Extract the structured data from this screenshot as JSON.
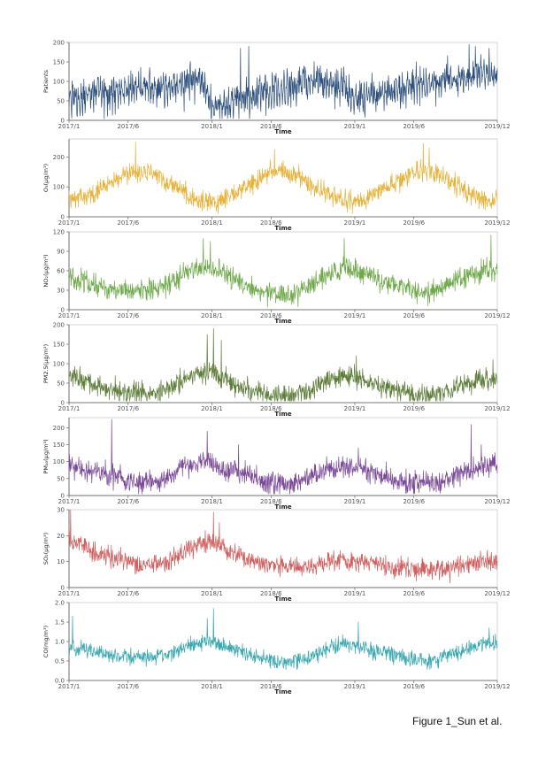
{
  "caption": "Figure 1_Sun et al.",
  "chart_data": [
    {
      "type": "line",
      "xlabel": "Time",
      "ylabel": "Patients",
      "color": "#2d4f7c",
      "x_range": [
        "2017-01-01",
        "2019-12-31"
      ],
      "ylim": [
        0,
        200
      ],
      "yticks": [
        0,
        50,
        100,
        150,
        200
      ],
      "xticks": [
        "2017/1",
        "2017/6",
        "2018/1",
        "2018/6",
        "2019/1",
        "2019/6",
        "2019/12"
      ],
      "monthly_mean": [
        60,
        70,
        75,
        80,
        85,
        88,
        90,
        92,
        95,
        100,
        105,
        120,
        40,
        50,
        60,
        70,
        75,
        80,
        85,
        95,
        105,
        110,
        100,
        95,
        70,
        75,
        80,
        85,
        90,
        95,
        100,
        110,
        115,
        120,
        125,
        130
      ],
      "noise": 35,
      "peaks": [
        [
          "2018-03-15",
          185
        ],
        [
          "2018-04-05",
          190
        ],
        [
          "2019-10-20",
          195
        ],
        [
          "2019-11-05",
          190
        ],
        [
          "2019-12-10",
          185
        ]
      ]
    },
    {
      "type": "line",
      "xlabel": "Time",
      "ylabel": "O₃(μg/m³)",
      "color": "#e6b23a",
      "x_range": [
        "2017-01-01",
        "2019-12-31"
      ],
      "ylim": [
        0,
        260
      ],
      "yticks": [
        0,
        100,
        200
      ],
      "xticks": [
        "2017/1",
        "2017/6",
        "2018/1",
        "2018/6",
        "2019/1",
        "2019/6",
        "2019/12"
      ],
      "monthly_mean": [
        60,
        65,
        80,
        100,
        120,
        140,
        150,
        140,
        120,
        100,
        70,
        55,
        50,
        55,
        75,
        100,
        130,
        150,
        150,
        140,
        120,
        95,
        70,
        55,
        50,
        55,
        80,
        105,
        130,
        150,
        150,
        140,
        120,
        100,
        70,
        55
      ],
      "noise": 30,
      "peaks": [
        [
          "2017-06-20",
          250
        ],
        [
          "2018-06-10",
          225
        ],
        [
          "2019-06-25",
          245
        ],
        [
          "2019-07-10",
          230
        ]
      ]
    },
    {
      "type": "line",
      "xlabel": "Time",
      "ylabel": "NO₂(μg/m³)",
      "color": "#6ea84a",
      "x_range": [
        "2017-01-01",
        "2019-12-31"
      ],
      "ylim": [
        0,
        120
      ],
      "yticks": [
        0,
        30,
        60,
        90,
        120
      ],
      "xticks": [
        "2017/1",
        "2017/6",
        "2018/1",
        "2018/6",
        "2019/1",
        "2019/6",
        "2019/12"
      ],
      "monthly_mean": [
        50,
        45,
        40,
        35,
        30,
        28,
        28,
        30,
        35,
        45,
        60,
        65,
        65,
        55,
        45,
        38,
        30,
        25,
        22,
        25,
        35,
        45,
        55,
        65,
        60,
        55,
        45,
        40,
        35,
        30,
        28,
        30,
        40,
        50,
        55,
        60
      ],
      "noise": 15,
      "peaks": [
        [
          "2017-12-10",
          110
        ],
        [
          "2017-12-28",
          105
        ],
        [
          "2018-12-05",
          110
        ],
        [
          "2019-12-15",
          115
        ]
      ]
    },
    {
      "type": "line",
      "xlabel": "Time",
      "ylabel": "PM2.5(μg/m³)",
      "color": "#5e7d3a",
      "x_range": [
        "2017-01-01",
        "2019-12-31"
      ],
      "ylim": [
        0,
        200
      ],
      "yticks": [
        0,
        50,
        100,
        150,
        200
      ],
      "xticks": [
        "2017/1",
        "2017/6",
        "2018/1",
        "2018/6",
        "2019/1",
        "2019/6",
        "2019/12"
      ],
      "monthly_mean": [
        70,
        60,
        50,
        40,
        30,
        25,
        25,
        25,
        30,
        45,
        70,
        80,
        80,
        60,
        45,
        35,
        28,
        22,
        20,
        22,
        30,
        45,
        60,
        70,
        65,
        55,
        40,
        35,
        28,
        22,
        20,
        22,
        30,
        45,
        55,
        65
      ],
      "noise": 25,
      "peaks": [
        [
          "2017-12-20",
          175
        ],
        [
          "2018-01-05",
          190
        ],
        [
          "2018-01-25",
          160
        ],
        [
          "2019-01-05",
          120
        ],
        [
          "2019-12-20",
          110
        ]
      ]
    },
    {
      "type": "line",
      "xlabel": "Time",
      "ylabel": "PM₁₀(μg/m³)",
      "color": "#7a4a99",
      "x_range": [
        "2017-01-01",
        "2019-12-31"
      ],
      "ylim": [
        0,
        230
      ],
      "yticks": [
        0,
        50,
        100,
        150,
        200
      ],
      "xticks": [
        "2017/1",
        "2017/6",
        "2018/1",
        "2018/6",
        "2019/1",
        "2019/6",
        "2019/12"
      ],
      "monthly_mean": [
        90,
        80,
        75,
        65,
        55,
        45,
        40,
        40,
        50,
        65,
        85,
        100,
        95,
        80,
        70,
        60,
        50,
        40,
        35,
        40,
        50,
        65,
        80,
        90,
        85,
        70,
        60,
        55,
        45,
        40,
        35,
        40,
        50,
        65,
        80,
        90
      ],
      "noise": 30,
      "peaks": [
        [
          "2017-04-20",
          225
        ],
        [
          "2017-12-20",
          190
        ],
        [
          "2018-03-10",
          150
        ],
        [
          "2019-01-10",
          140
        ],
        [
          "2019-10-25",
          210
        ],
        [
          "2019-11-20",
          150
        ]
      ]
    },
    {
      "type": "line",
      "xlabel": "Time",
      "ylabel": "SO₂(μg/m³)",
      "color": "#d06060",
      "x_range": [
        "2017-01-01",
        "2019-12-31"
      ],
      "ylim": [
        0,
        30
      ],
      "yticks": [
        0,
        10,
        20,
        30
      ],
      "xticks": [
        "2017/1",
        "2017/6",
        "2018/1",
        "2018/6",
        "2019/1",
        "2019/6",
        "2019/12"
      ],
      "monthly_mean": [
        18,
        16,
        14,
        12,
        11,
        10,
        9,
        9,
        10,
        12,
        15,
        17,
        17,
        15,
        13,
        11,
        10,
        9,
        8,
        8,
        8,
        9,
        10,
        11,
        10,
        9,
        9,
        8,
        8,
        7,
        7,
        7,
        7,
        8,
        9,
        10
      ],
      "noise": 3.5,
      "peaks": [
        [
          "2017-01-05",
          30
        ],
        [
          "2017-12-15",
          22
        ],
        [
          "2018-01-05",
          29
        ],
        [
          "2018-01-20",
          25
        ]
      ]
    },
    {
      "type": "line",
      "xlabel": "Time",
      "ylabel": "CO(mg/m³)",
      "color": "#3aa8b0",
      "x_range": [
        "2017-01-01",
        "2019-12-31"
      ],
      "ylim": [
        0,
        2
      ],
      "yticks": [
        0.0,
        0.5,
        1.0,
        1.5,
        2.0
      ],
      "xticks": [
        "2017/1",
        "2017/6",
        "2018/1",
        "2018/6",
        "2019/1",
        "2019/6",
        "2019/12"
      ],
      "monthly_mean": [
        0.9,
        0.8,
        0.75,
        0.7,
        0.65,
        0.6,
        0.6,
        0.6,
        0.65,
        0.75,
        0.85,
        0.95,
        1.0,
        0.9,
        0.8,
        0.7,
        0.6,
        0.5,
        0.45,
        0.5,
        0.6,
        0.7,
        0.85,
        0.95,
        0.9,
        0.8,
        0.75,
        0.7,
        0.6,
        0.55,
        0.5,
        0.55,
        0.65,
        0.75,
        0.85,
        0.95
      ],
      "noise": 0.18,
      "peaks": [
        [
          "2017-01-10",
          1.65
        ],
        [
          "2017-12-20",
          1.6
        ],
        [
          "2018-01-05",
          1.85
        ],
        [
          "2019-01-10",
          1.5
        ],
        [
          "2019-12-10",
          1.35
        ]
      ]
    }
  ]
}
